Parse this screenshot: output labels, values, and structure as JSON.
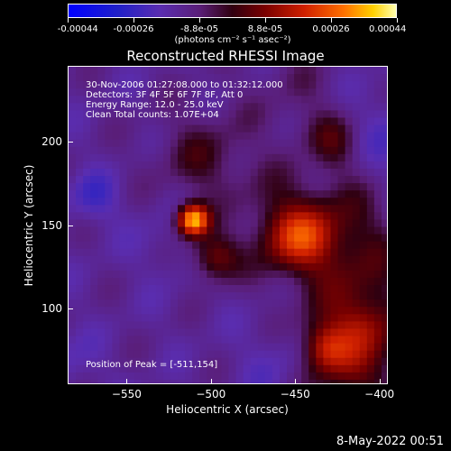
{
  "colorbar": {
    "ticks": [
      "-0.00044",
      "-0.00026",
      "-8.8e-05",
      "8.8e-05",
      "0.00026",
      "0.00044"
    ],
    "unit": "(photons cm⁻² s⁻¹ asec⁻²)"
  },
  "chart_data": {
    "type": "heatmap",
    "title": "Reconstructed RHESSI Image",
    "xlabel": "Heliocentric X (arcsec)",
    "ylabel": "Heliocentric Y (arcsec)",
    "xlim": [
      -585,
      -395
    ],
    "ylim": [
      55,
      245
    ],
    "xticks": [
      -550,
      -500,
      -450,
      -400
    ],
    "yticks": [
      100,
      150,
      200
    ],
    "xtick_labels": [
      "−550",
      "−500",
      "−450",
      "−400"
    ],
    "ytick_labels": [
      "100",
      "150",
      "200"
    ],
    "color_range": [
      -0.00044,
      0.00044
    ],
    "colors": {
      "low": "#0000ff",
      "mid": "#5a1e78",
      "zero": "#300010",
      "high": "#ff7000",
      "peak": "#ffffb0"
    },
    "annotations": [
      "30-Nov-2006 01:27:08.000 to 01:32:12.000",
      "Detectors: 3F 4F 5F 6F 7F 8F, Att 0",
      "Energy Range: 12.0 - 25.0 keV",
      "Clean     Total counts: 1.07E+04"
    ],
    "peak_label": "Position of Peak = [-511,154]",
    "peak": [
      -511,
      154
    ]
  },
  "footer": "8-May-2022 00:51"
}
